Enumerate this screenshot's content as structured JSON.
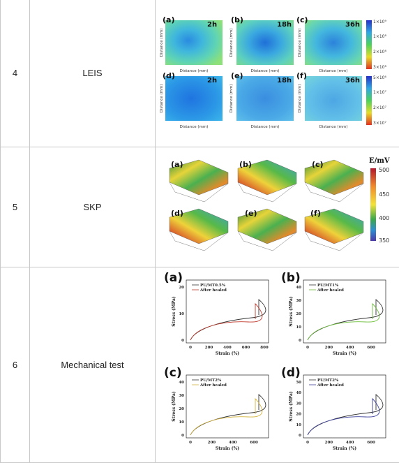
{
  "rows": [
    {
      "number": "4",
      "method": "LEIS",
      "figure": {
        "panels_top": [
          {
            "label": "(a)",
            "time": "2h"
          },
          {
            "label": "(b)",
            "time": "18h"
          },
          {
            "label": "(c)",
            "time": "36h"
          }
        ],
        "panels_bottom": [
          {
            "label": "(d)",
            "time": "2h"
          },
          {
            "label": "(e)",
            "time": "18h"
          },
          {
            "label": "(f)",
            "time": "36h"
          }
        ],
        "xlabel": "Distance (mm)",
        "ylabel": "Distance (mm)",
        "colorbar_top": [
          "1×10⁹",
          "1×10⁸",
          "2×10⁸",
          "3×10⁸"
        ],
        "colorbar_bottom": [
          "5×10⁶",
          "1×10⁷",
          "2×10⁷",
          "3×10⁷"
        ]
      }
    },
    {
      "number": "5",
      "method": "SKP",
      "figure": {
        "panels": [
          "(a)",
          "(b)",
          "(c)",
          "(d)",
          "(e)",
          "(f)"
        ],
        "colorbar_title": "E/mV",
        "colorbar_ticks": [
          "500",
          "450",
          "400",
          "350"
        ]
      }
    },
    {
      "number": "6",
      "method": "Mechanical test",
      "figure": {
        "xlabel": "Strain (%)",
        "ylabel": "Stress (MPa)",
        "legend_after": "After healed",
        "colors": {
          "original": "#333333",
          "healed_a": "#c0392b",
          "healed_b": "#6cbf3a",
          "healed_c": "#d4b43c",
          "healed_d": "#3b3f9a"
        },
        "panels": [
          {
            "label": "(a)",
            "legend_orig": "PU/MT0.5%",
            "xticks": [
              "0",
              "200",
              "400",
              "600",
              "800"
            ],
            "yticks": [
              "0",
              "10",
              "20"
            ]
          },
          {
            "label": "(b)",
            "legend_orig": "PU/MT1%",
            "xticks": [
              "0",
              "200",
              "400",
              "600"
            ],
            "yticks": [
              "0",
              "10",
              "20",
              "30",
              "40"
            ]
          },
          {
            "label": "(c)",
            "legend_orig": "PU/MT2%",
            "xticks": [
              "0",
              "200",
              "400",
              "600"
            ],
            "yticks": [
              "0",
              "10",
              "20",
              "30",
              "40"
            ]
          },
          {
            "label": "(d)",
            "legend_orig": "PU/MT2%",
            "xticks": [
              "0",
              "200",
              "400",
              "600"
            ],
            "yticks": [
              "0",
              "10",
              "20",
              "30",
              "40",
              "50"
            ]
          }
        ]
      }
    }
  ]
}
